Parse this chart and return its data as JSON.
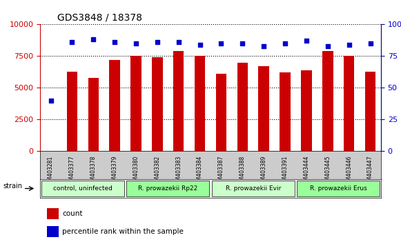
{
  "title": "GDS3848 / 18378",
  "samples": [
    "GSM403281",
    "GSM403377",
    "GSM403378",
    "GSM403379",
    "GSM403380",
    "GSM403382",
    "GSM403383",
    "GSM403384",
    "GSM403387",
    "GSM403388",
    "GSM403389",
    "GSM403391",
    "GSM403444",
    "GSM403445",
    "GSM403446",
    "GSM403447"
  ],
  "counts": [
    10,
    6300,
    5800,
    7200,
    7500,
    7400,
    7900,
    7500,
    6100,
    7000,
    6700,
    6200,
    6400,
    7900,
    7500,
    6300
  ],
  "percentiles": [
    40,
    86,
    88,
    86,
    85,
    86,
    86,
    84,
    85,
    85,
    83,
    85,
    87,
    83,
    84,
    85
  ],
  "bar_color": "#cc0000",
  "dot_color": "#0000cc",
  "ylim_left": [
    0,
    10000
  ],
  "ylim_right": [
    0,
    100
  ],
  "yticks_left": [
    0,
    2500,
    5000,
    7500,
    10000
  ],
  "yticks_right": [
    0,
    25,
    50,
    75,
    100
  ],
  "groups": [
    {
      "label": "control, uninfected",
      "start": 0,
      "end": 3,
      "color": "#ccffcc"
    },
    {
      "label": "R. prowazekii Rp22",
      "start": 4,
      "end": 7,
      "color": "#99ff99"
    },
    {
      "label": "R. prowazekii Evir",
      "start": 8,
      "end": 11,
      "color": "#ccffcc"
    },
    {
      "label": "R. prowazekii Erus",
      "start": 12,
      "end": 15,
      "color": "#99ff99"
    }
  ],
  "left_axis_color": "#cc0000",
  "right_axis_color": "#0000cc",
  "legend_count_label": "count",
  "legend_percentile_label": "percentile rank within the sample",
  "strain_label": "strain",
  "grid_color": "#000000",
  "plot_bg_color": "#ffffff",
  "tick_area_color": "#cccccc"
}
